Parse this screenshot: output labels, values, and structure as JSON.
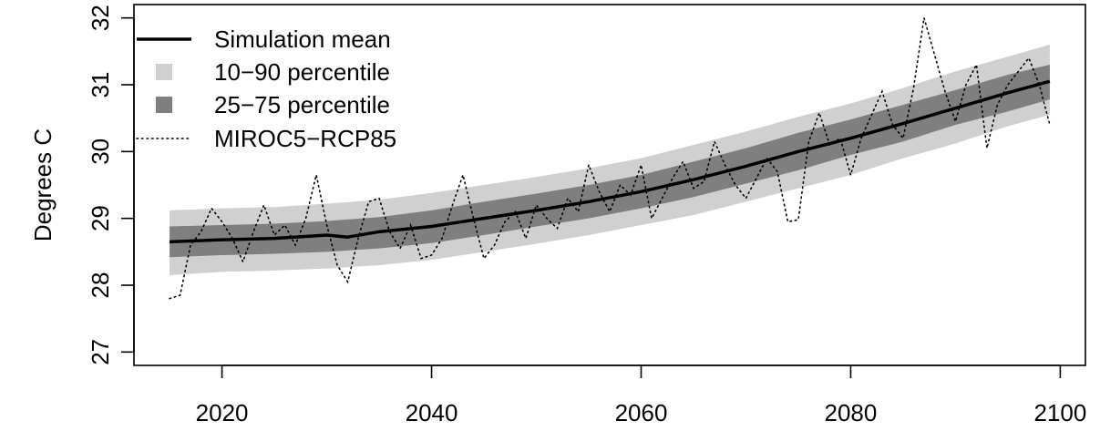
{
  "chart_data": {
    "type": "line",
    "title": "",
    "xlabel": "",
    "ylabel": "Degrees C",
    "xlim": [
      2015,
      2100
    ],
    "ylim": [
      27,
      32
    ],
    "xticks": [
      2020,
      2040,
      2060,
      2080,
      2100
    ],
    "yticks": [
      27,
      28,
      29,
      30,
      31,
      32
    ],
    "grid": false,
    "legend_position": "top-left",
    "legend": [
      {
        "key": "mean",
        "label": "Simulation mean"
      },
      {
        "key": "p10_90",
        "label": "10−90 percentile"
      },
      {
        "key": "p25_75",
        "label": "25−75 percentile"
      },
      {
        "key": "miroc",
        "label": "MIROC5−RCP85"
      }
    ],
    "colors": {
      "p10_90": "#d0d0d0",
      "p25_75": "#7f7f7f",
      "mean": "#000000",
      "miroc": "#000000"
    },
    "mean_series": {
      "name": "Simulation mean",
      "x": [
        2015,
        2020,
        2025,
        2030,
        2032,
        2035,
        2040,
        2045,
        2050,
        2055,
        2060,
        2065,
        2070,
        2075,
        2080,
        2085,
        2090,
        2095,
        2099
      ],
      "values": [
        28.65,
        28.68,
        28.7,
        28.75,
        28.72,
        28.8,
        28.88,
        29.0,
        29.12,
        29.25,
        29.4,
        29.58,
        29.78,
        30.0,
        30.2,
        30.42,
        30.65,
        30.88,
        31.05
      ]
    },
    "band_10_90": {
      "name": "10−90 percentile",
      "x": [
        2015,
        2020,
        2025,
        2030,
        2035,
        2040,
        2045,
        2050,
        2055,
        2060,
        2065,
        2070,
        2075,
        2080,
        2085,
        2090,
        2095,
        2099
      ],
      "lower": [
        28.15,
        28.2,
        28.22,
        28.25,
        28.3,
        28.38,
        28.5,
        28.62,
        28.75,
        28.9,
        29.05,
        29.25,
        29.45,
        29.65,
        29.9,
        30.12,
        30.38,
        30.55
      ],
      "upper": [
        29.12,
        29.15,
        29.17,
        29.22,
        29.28,
        29.38,
        29.5,
        29.62,
        29.75,
        29.9,
        30.1,
        30.3,
        30.52,
        30.72,
        30.95,
        31.2,
        31.42,
        31.6
      ]
    },
    "band_25_75": {
      "name": "25−75 percentile",
      "x": [
        2015,
        2020,
        2025,
        2030,
        2035,
        2040,
        2045,
        2050,
        2055,
        2060,
        2065,
        2070,
        2075,
        2080,
        2085,
        2090,
        2095,
        2099
      ],
      "lower": [
        28.42,
        28.45,
        28.47,
        28.5,
        28.55,
        28.63,
        28.75,
        28.88,
        29.0,
        29.15,
        29.32,
        29.52,
        29.72,
        29.95,
        30.15,
        30.4,
        30.6,
        30.78
      ],
      "upper": [
        28.88,
        28.9,
        28.92,
        28.96,
        29.02,
        29.12,
        29.25,
        29.37,
        29.5,
        29.65,
        29.85,
        30.05,
        30.28,
        30.48,
        30.7,
        30.92,
        31.15,
        31.3
      ]
    },
    "miroc_series": {
      "name": "MIROC5−RCP85",
      "x": [
        2015,
        2016,
        2017,
        2018,
        2019,
        2020,
        2021,
        2022,
        2023,
        2024,
        2025,
        2026,
        2027,
        2028,
        2029,
        2030,
        2031,
        2032,
        2033,
        2034,
        2035,
        2036,
        2037,
        2038,
        2039,
        2040,
        2041,
        2042,
        2043,
        2044,
        2045,
        2046,
        2047,
        2048,
        2049,
        2050,
        2051,
        2052,
        2053,
        2054,
        2055,
        2056,
        2057,
        2058,
        2059,
        2060,
        2061,
        2062,
        2063,
        2064,
        2065,
        2066,
        2067,
        2068,
        2069,
        2070,
        2071,
        2072,
        2073,
        2074,
        2075,
        2076,
        2077,
        2078,
        2079,
        2080,
        2081,
        2082,
        2083,
        2084,
        2085,
        2086,
        2087,
        2088,
        2089,
        2090,
        2091,
        2092,
        2093,
        2094,
        2095,
        2096,
        2097,
        2098,
        2099
      ],
      "values": [
        27.8,
        27.85,
        28.6,
        28.8,
        29.15,
        28.95,
        28.7,
        28.35,
        28.8,
        29.2,
        28.75,
        28.9,
        28.6,
        29.0,
        29.65,
        28.9,
        28.3,
        28.05,
        28.7,
        29.25,
        29.3,
        28.8,
        28.55,
        28.9,
        28.4,
        28.45,
        28.7,
        29.2,
        29.65,
        29.0,
        28.4,
        28.6,
        28.95,
        29.1,
        28.7,
        29.2,
        29.0,
        28.85,
        29.3,
        29.1,
        29.8,
        29.4,
        29.1,
        29.5,
        29.35,
        29.8,
        29.0,
        29.3,
        29.6,
        29.85,
        29.45,
        29.55,
        30.15,
        29.8,
        29.5,
        29.3,
        29.6,
        29.9,
        29.7,
        28.95,
        28.98,
        30.15,
        30.58,
        30.1,
        30.2,
        29.65,
        30.2,
        30.55,
        30.9,
        30.4,
        30.2,
        30.95,
        32.0,
        31.45,
        30.9,
        30.45,
        31.0,
        31.3,
        30.05,
        30.7,
        31.0,
        31.2,
        31.4,
        31.0,
        30.4
      ]
    }
  }
}
